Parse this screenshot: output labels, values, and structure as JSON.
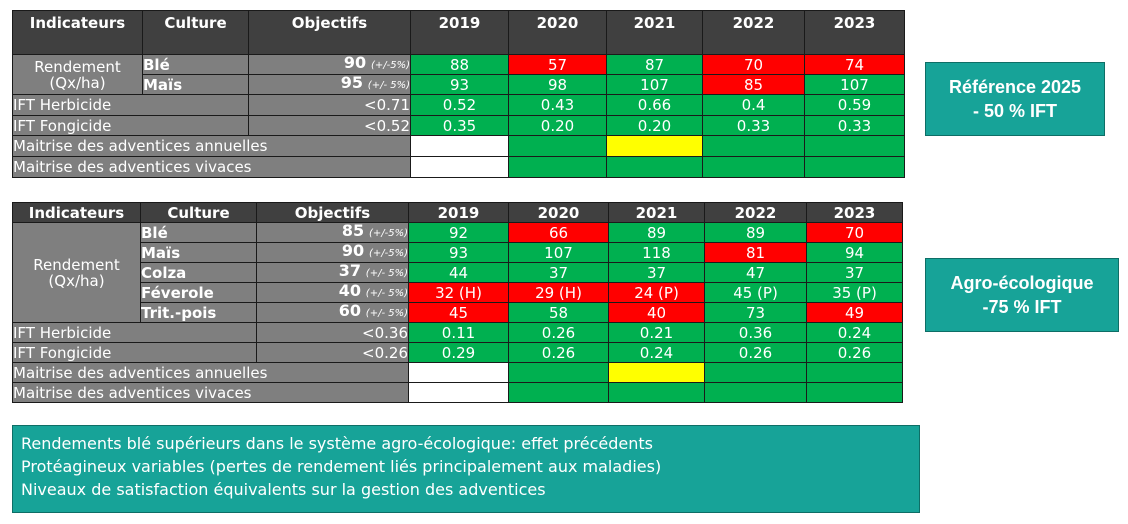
{
  "table1": {
    "headers": {
      "indicateurs": "Indicateurs",
      "culture": "Culture",
      "objectifs": "Objectifs",
      "years": [
        "2019",
        "2020",
        "2021",
        "2022",
        "2023"
      ]
    },
    "rendement_label": [
      "Rendement",
      "(Qx/ha)"
    ],
    "crops": [
      {
        "name": "Blé",
        "obj_value": "90",
        "obj_tol": "(+/-5%)",
        "values": [
          "88",
          "57",
          "87",
          "70",
          "74"
        ],
        "colors": [
          "green",
          "red",
          "green",
          "red",
          "red"
        ]
      },
      {
        "name": "Maïs",
        "obj_value": "95",
        "obj_tol": "(+/- 5%)",
        "values": [
          "93",
          "98",
          "107",
          "85",
          "107"
        ],
        "colors": [
          "green",
          "green",
          "green",
          "red",
          "green"
        ]
      }
    ],
    "ift": [
      {
        "label": "IFT Herbicide",
        "obj": "<0.71",
        "values": [
          "0.52",
          "0.43",
          "0.66",
          "0.4",
          "0.59"
        ]
      },
      {
        "label": "IFT Fongicide",
        "obj": "<0.52",
        "values": [
          "0.35",
          "0.20",
          "0.20",
          "0.33",
          "0.33"
        ]
      }
    ],
    "adventices": [
      {
        "label": "Maitrise des adventices annuelles",
        "colors": [
          "white",
          "green",
          "yellow",
          "green",
          "green"
        ]
      },
      {
        "label": "Maitrise des adventices vivaces",
        "colors": [
          "white",
          "green",
          "green",
          "green",
          "green"
        ]
      }
    ]
  },
  "table2": {
    "headers": {
      "indicateurs": "Indicateurs",
      "culture": "Culture",
      "objectifs": "Objectifs",
      "years": [
        "2019",
        "2020",
        "2021",
        "2022",
        "2023"
      ]
    },
    "rendement_label": [
      "Rendement",
      "(Qx/ha)"
    ],
    "crops": [
      {
        "name": "Blé",
        "obj_value": "85",
        "obj_tol": "(+/-5%)",
        "values": [
          "92",
          "66",
          "89",
          "89",
          "70"
        ],
        "colors": [
          "green",
          "red",
          "green",
          "green",
          "red"
        ]
      },
      {
        "name": "Maïs",
        "obj_value": "90",
        "obj_tol": "(+/-5%)",
        "values": [
          "93",
          "107",
          "118",
          "81",
          "94"
        ],
        "colors": [
          "green",
          "green",
          "green",
          "red",
          "green"
        ]
      },
      {
        "name": "Colza",
        "obj_value": "37",
        "obj_tol": "(+/- 5%)",
        "values": [
          "44",
          "37",
          "37",
          "47",
          "37"
        ],
        "colors": [
          "green",
          "green",
          "green",
          "green",
          "green"
        ]
      },
      {
        "name": "Féverole",
        "obj_value": "40",
        "obj_tol": "(+/- 5%)",
        "values": [
          "32 (H)",
          "29 (H)",
          "24 (P)",
          "45 (P)",
          "35 (P)"
        ],
        "colors": [
          "red",
          "red",
          "red",
          "green",
          "green"
        ]
      },
      {
        "name": "Trit.-pois",
        "obj_value": "60",
        "obj_tol": "(+/- 5%)",
        "values": [
          "45",
          "58",
          "40",
          "73",
          "49"
        ],
        "colors": [
          "red",
          "green",
          "red",
          "green",
          "red"
        ]
      }
    ],
    "ift": [
      {
        "label": "IFT Herbicide",
        "obj": "<0.36",
        "values": [
          "0.11",
          "0.26",
          "0.21",
          "0.36",
          "0.24"
        ]
      },
      {
        "label": "IFT Fongicide",
        "obj": "<0.26",
        "values": [
          "0.29",
          "0.26",
          "0.24",
          "0.26",
          "0.26"
        ]
      }
    ],
    "adventices": [
      {
        "label": "Maitrise des adventices annuelles",
        "colors": [
          "white",
          "green",
          "yellow",
          "green",
          "green"
        ]
      },
      {
        "label": "Maitrise des adventices vivaces",
        "colors": [
          "white",
          "green",
          "green",
          "green",
          "green"
        ]
      }
    ]
  },
  "reference_box": {
    "line1": "Référence 2025",
    "line2": "- 50 % IFT"
  },
  "agro_box": {
    "line1": "Agro-écologique",
    "line2": "-75 % IFT"
  },
  "notes": [
    "Rendements blé supérieurs dans le système agro-écologique: effet précédents",
    "Protéagineux variables (pertes de rendement liés principalement aux maladies)",
    "Niveaux de satisfaction équivalents sur la gestion des adventices"
  ],
  "colors": {
    "green": "#00b050",
    "red": "#ff0000",
    "yellow": "#ffff00",
    "header": "#404040",
    "gray": "#7f7f7f",
    "teal": "#17a398"
  }
}
